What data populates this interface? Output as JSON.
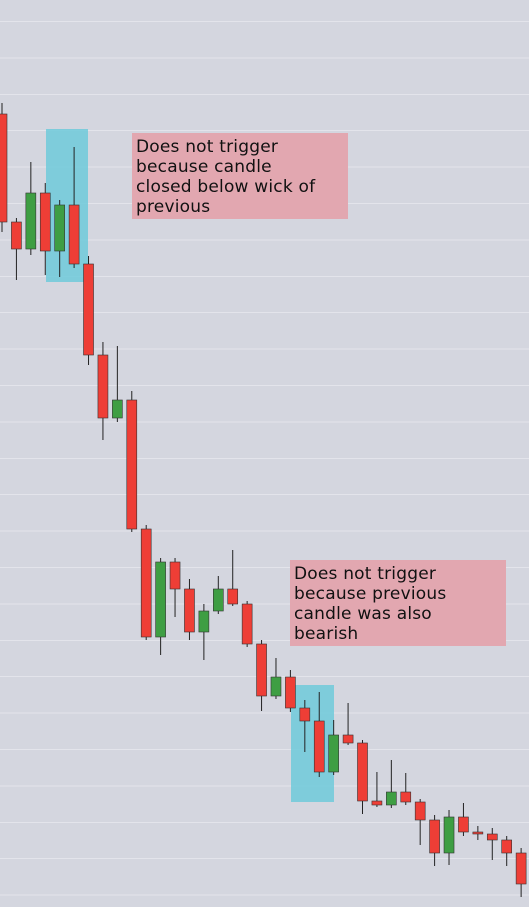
{
  "chart_data": {
    "type": "candlestick",
    "ylim": [
      0,
      907
    ],
    "grid": true,
    "up_color": "#3e9e43",
    "down_color": "#ee3e36",
    "wick_color": "#222222",
    "open": [
      793,
      685,
      658,
      714,
      656,
      702,
      643,
      552,
      489,
      507,
      378,
      270,
      345,
      318,
      275,
      296,
      318,
      303,
      263,
      211,
      230,
      199,
      186,
      135,
      172,
      164,
      106,
      102,
      115,
      105,
      87,
      54,
      90,
      75,
      73,
      67,
      54
    ],
    "high": [
      804,
      689,
      745,
      724,
      707,
      760,
      651,
      565,
      561,
      516,
      382,
      349,
      349,
      328,
      303,
      331,
      357,
      306,
      267,
      249,
      237,
      207,
      215,
      187,
      204,
      167,
      135,
      147,
      134,
      108,
      92,
      97,
      104,
      81,
      79,
      71,
      59
    ],
    "low": [
      675,
      627,
      652,
      632,
      630,
      639,
      542,
      467,
      485,
      375,
      267,
      252,
      290,
      267,
      247,
      293,
      301,
      260,
      196,
      208,
      195,
      155,
      130,
      132,
      162,
      93,
      100,
      99,
      102,
      62,
      41,
      42,
      71,
      67,
      47,
      41,
      10
    ],
    "close": [
      685,
      658,
      714,
      656,
      702,
      643,
      552,
      489,
      507,
      378,
      270,
      345,
      318,
      275,
      296,
      318,
      303,
      263,
      211,
      230,
      199,
      186,
      135,
      172,
      164,
      106,
      102,
      115,
      105,
      87,
      54,
      90,
      75,
      73,
      67,
      54,
      23
    ],
    "annotations": [
      {
        "lines": [
          "Does not trigger",
          "because candle",
          "closed below wick of",
          "previous"
        ]
      },
      {
        "lines": [
          "Does not trigger",
          "because previous",
          "candle was also",
          "bearish"
        ]
      }
    ]
  }
}
